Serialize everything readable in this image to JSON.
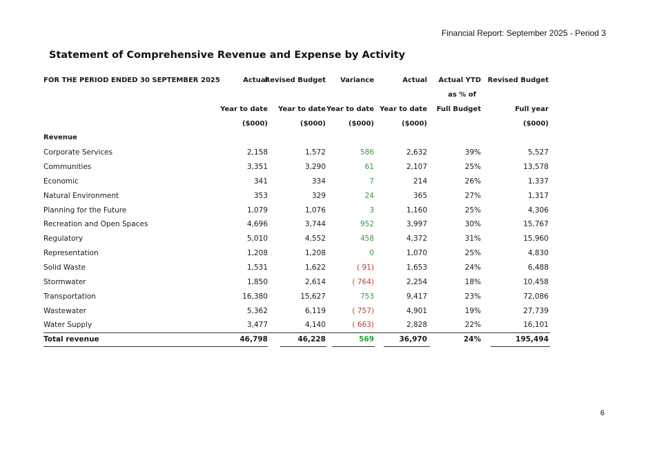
{
  "header": {
    "report_title": "Financial Report:  September 2025  - Period 3"
  },
  "title": "Statement of Comprehensive Revenue and Expense by Activity",
  "table": {
    "period_label": "FOR THE PERIOD ENDED 30 SEPTEMBER 2025",
    "column_headers_row1": [
      "Actual",
      "Revised Budget",
      "Variance",
      "Actual",
      "Actual YTD",
      "Revised Budget"
    ],
    "column_headers_row2": [
      "",
      "",
      "",
      "",
      "as % of",
      ""
    ],
    "column_headers_row3": [
      "Year to date",
      "Year to date",
      "Year to date",
      "Year to date",
      "Full Budget",
      "Full year"
    ],
    "column_headers_row4": [
      "($000)",
      "($000)",
      "($000)",
      "($000)",
      "",
      "($000)"
    ],
    "section_label": "Revenue",
    "rows": [
      {
        "label": "Corporate Services",
        "actual_ytd": "2,158",
        "budget_ytd": "1,572",
        "variance": "586",
        "actual": "2,632",
        "pct": "39%",
        "full_year": "5,527",
        "variance_sign": "pos"
      },
      {
        "label": "Communities",
        "actual_ytd": "3,351",
        "budget_ytd": "3,290",
        "variance": "61",
        "actual": "2,107",
        "pct": "25%",
        "full_year": "13,578",
        "variance_sign": "pos"
      },
      {
        "label": "Economic",
        "actual_ytd": "341",
        "budget_ytd": "334",
        "variance": "7",
        "actual": "214",
        "pct": "26%",
        "full_year": "1,337",
        "variance_sign": "pos"
      },
      {
        "label": "Natural Environment",
        "actual_ytd": "353",
        "budget_ytd": "329",
        "variance": "24",
        "actual": "365",
        "pct": "27%",
        "full_year": "1,317",
        "variance_sign": "pos"
      },
      {
        "label": "Planning for the Future",
        "actual_ytd": "1,079",
        "budget_ytd": "1,076",
        "variance": "3",
        "actual": "1,160",
        "pct": "25%",
        "full_year": "4,306",
        "variance_sign": "pos"
      },
      {
        "label": "Recreation and Open Spaces",
        "actual_ytd": "4,696",
        "budget_ytd": "3,744",
        "variance": "952",
        "actual": "3,997",
        "pct": "30%",
        "full_year": "15,767",
        "variance_sign": "pos"
      },
      {
        "label": "Regulatory",
        "actual_ytd": "5,010",
        "budget_ytd": "4,552",
        "variance": "458",
        "actual": "4,372",
        "pct": "31%",
        "full_year": "15,960",
        "variance_sign": "pos"
      },
      {
        "label": "Representation",
        "actual_ytd": "1,208",
        "budget_ytd": "1,208",
        "variance": "0",
        "actual": "1,070",
        "pct": "25%",
        "full_year": "4,830",
        "variance_sign": "pos"
      },
      {
        "label": "Solid Waste",
        "actual_ytd": "1,531",
        "budget_ytd": "1,622",
        "variance": "( 91)",
        "actual": "1,653",
        "pct": "24%",
        "full_year": "6,488",
        "variance_sign": "neg"
      },
      {
        "label": "Stormwater",
        "actual_ytd": "1,850",
        "budget_ytd": "2,614",
        "variance": "( 764)",
        "actual": "2,254",
        "pct": "18%",
        "full_year": "10,458",
        "variance_sign": "neg"
      },
      {
        "label": "Transportation",
        "actual_ytd": "16,380",
        "budget_ytd": "15,627",
        "variance": "753",
        "actual": "9,417",
        "pct": "23%",
        "full_year": "72,086",
        "variance_sign": "pos"
      },
      {
        "label": "Wastewater",
        "actual_ytd": "5,362",
        "budget_ytd": "6,119",
        "variance": "( 757)",
        "actual": "4,901",
        "pct": "19%",
        "full_year": "27,739",
        "variance_sign": "neg"
      },
      {
        "label": "Water Supply",
        "actual_ytd": "3,477",
        "budget_ytd": "4,140",
        "variance": "( 663)",
        "actual": "2,828",
        "pct": "22%",
        "full_year": "16,101",
        "variance_sign": "neg"
      }
    ],
    "total": {
      "label": "Total revenue",
      "actual_ytd": "46,798",
      "budget_ytd": "46,228",
      "variance": "569",
      "actual": "36,970",
      "pct": "24%",
      "full_year": "195,494",
      "variance_sign": "pos"
    }
  },
  "colors": {
    "positive": "#2e9a3c",
    "negative": "#c0392b"
  },
  "page_number": "6"
}
